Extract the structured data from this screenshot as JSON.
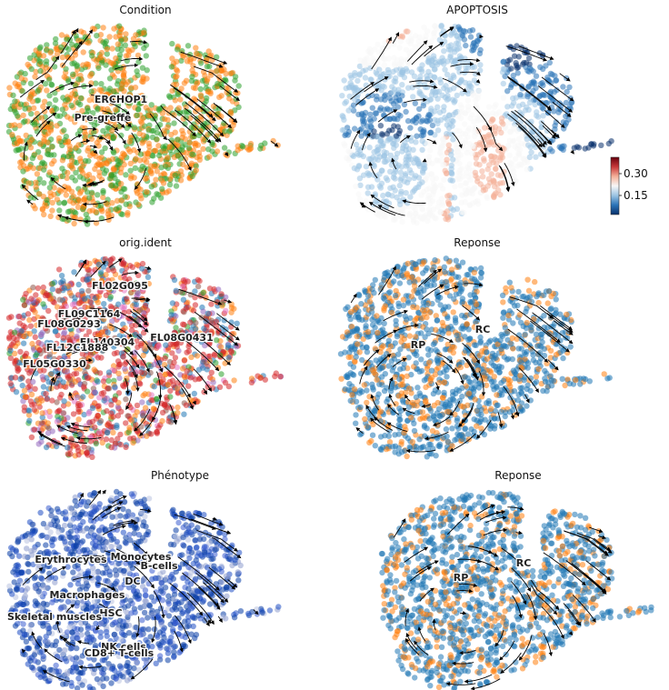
{
  "chart_data": [
    {
      "type": "scatter",
      "title": "Condition",
      "coloring": "categorical",
      "colors": [
        "#2ca02c",
        "#ff7f0e"
      ],
      "point_color_weights": [
        0.45,
        0.55
      ],
      "labels": [
        {
          "text": "ERCHOP1",
          "color_index": 0
        },
        {
          "text": "Pre-greffe",
          "color_index": 1
        }
      ]
    },
    {
      "type": "scatter",
      "title": "APOPTOSIS",
      "coloring": "continuous",
      "colormap": [
        "#08306b",
        "#2b74b8",
        "#9cc4e3",
        "#f7f7f7",
        "#f4b199",
        "#c8383a",
        "#67000d"
      ],
      "colorbar": {
        "ticks": [
          "0.30",
          "0.15"
        ],
        "range": [
          0.05,
          0.38
        ]
      },
      "labels": []
    },
    {
      "type": "scatter",
      "title": "orig.ident",
      "coloring": "categorical",
      "colors": [
        "#1f77b4",
        "#d62728",
        "#ff7f0e",
        "#2ca02c",
        "#9467bd",
        "#8c564b",
        "#e377c2"
      ],
      "point_color_weights": [
        0.18,
        0.42,
        0.18,
        0.05,
        0.06,
        0.07,
        0.04
      ],
      "labels": [
        {
          "text": "FL02G095",
          "color_index": 0
        },
        {
          "text": "FL09C1164",
          "color_index": 5
        },
        {
          "text": "FL08G0293",
          "color_index": 4
        },
        {
          "text": "FL140304",
          "color_index": 6
        },
        {
          "text": "FL08G0431",
          "color_index": 1
        },
        {
          "text": "FL12C1888",
          "color_index": 5
        },
        {
          "text": "FL05G0330",
          "color_index": 2
        }
      ]
    },
    {
      "type": "scatter",
      "title": "Reponse",
      "coloring": "categorical",
      "colors": [
        "#1f77b4",
        "#ff7f0e"
      ],
      "point_color_weights": [
        0.72,
        0.28
      ],
      "labels": [
        {
          "text": "RP",
          "color_index": 1
        },
        {
          "text": "RC",
          "color_index": 0
        }
      ]
    },
    {
      "type": "scatter",
      "title": "Phénotype",
      "coloring": "categorical",
      "colors": [
        "#0a3ea6",
        "#1f4fc4",
        "#8e9dcd",
        "#b9c2e0",
        "#3a5ccf"
      ],
      "point_color_weights": [
        0.45,
        0.25,
        0.12,
        0.08,
        0.1
      ],
      "labels": [
        {
          "text": "Erythrocytes",
          "color_index": 0
        },
        {
          "text": "Monocytes",
          "color_index": 1
        },
        {
          "text": "B-cells",
          "color_index": 1
        },
        {
          "text": "DC",
          "color_index": 1
        },
        {
          "text": "Macrophages",
          "color_index": 4
        },
        {
          "text": "HSC",
          "color_index": 4
        },
        {
          "text": "Skeletal muscles",
          "color_index": 2
        },
        {
          "text": "NK cells",
          "color_index": 3
        },
        {
          "text": "CD8+ T-cells",
          "color_index": 3
        }
      ]
    },
    {
      "type": "scatter",
      "title": "Reponse",
      "coloring": "categorical",
      "colors": [
        "#1f77b4",
        "#ff7f0e"
      ],
      "point_color_weights": [
        0.72,
        0.28
      ],
      "labels": [
        {
          "text": "RP",
          "color_index": 1
        },
        {
          "text": "RC",
          "color_index": 0
        }
      ]
    }
  ]
}
